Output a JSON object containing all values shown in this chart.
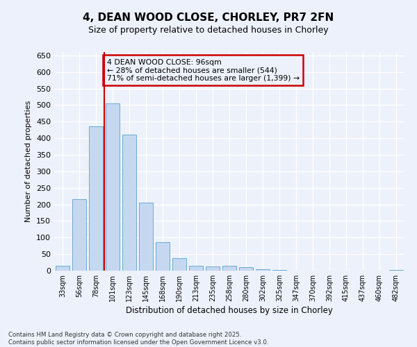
{
  "title1": "4, DEAN WOOD CLOSE, CHORLEY, PR7 2FN",
  "title2": "Size of property relative to detached houses in Chorley",
  "xlabel": "Distribution of detached houses by size in Chorley",
  "ylabel": "Number of detached properties",
  "categories": [
    "33sqm",
    "56sqm",
    "78sqm",
    "101sqm",
    "123sqm",
    "145sqm",
    "168sqm",
    "190sqm",
    "213sqm",
    "235sqm",
    "258sqm",
    "280sqm",
    "302sqm",
    "325sqm",
    "347sqm",
    "370sqm",
    "392sqm",
    "415sqm",
    "437sqm",
    "460sqm",
    "482sqm"
  ],
  "values": [
    14,
    215,
    435,
    505,
    410,
    205,
    85,
    37,
    14,
    13,
    14,
    10,
    4,
    2,
    1,
    1,
    1,
    0,
    0,
    0,
    3
  ],
  "bar_color": "#c5d8f0",
  "bar_edgecolor": "#6aaad4",
  "vline_color": "#cc0000",
  "vline_x_index": 2.5,
  "annotation_text": "4 DEAN WOOD CLOSE: 96sqm\n← 28% of detached houses are smaller (544)\n71% of semi-detached houses are larger (1,399) →",
  "annotation_box_color": "#cc0000",
  "ylim": [
    0,
    660
  ],
  "yticks": [
    0,
    50,
    100,
    150,
    200,
    250,
    300,
    350,
    400,
    450,
    500,
    550,
    600,
    650
  ],
  "background_color": "#edf1fb",
  "grid_color": "#ffffff",
  "footer": "Contains HM Land Registry data © Crown copyright and database right 2025.\nContains public sector information licensed under the Open Government Licence v3.0."
}
